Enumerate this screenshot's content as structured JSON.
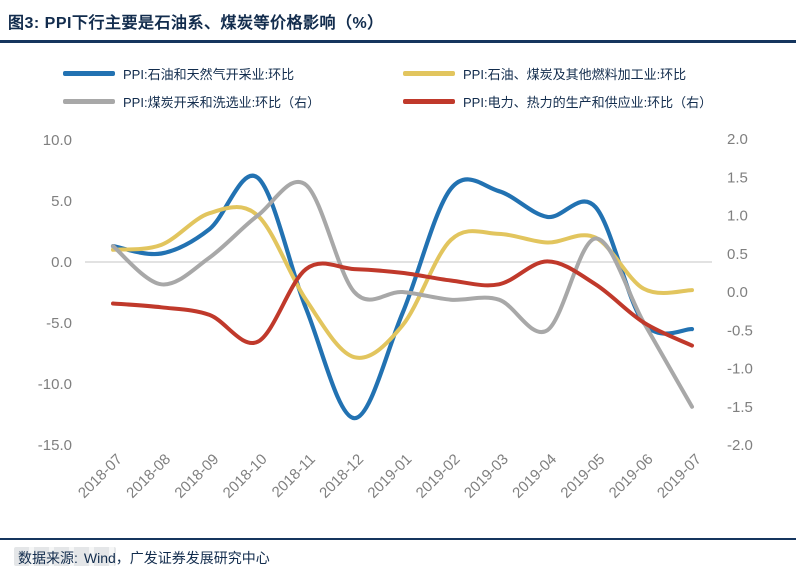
{
  "header": {
    "title": "图3:  PPI下行主要是石油系、煤炭等价格影响（%）"
  },
  "chart_data": {
    "type": "line",
    "title": "PPI下行主要是石油系、煤炭等价格影响（%）",
    "x": [
      "2018-07",
      "2018-08",
      "2018-09",
      "2018-10",
      "2018-11",
      "2018-12",
      "2019-01",
      "2019-02",
      "2019-03",
      "2019-04",
      "2019-05",
      "2019-06",
      "2019-07"
    ],
    "series": [
      {
        "name": "PPI:石油和天然气开采业:环比",
        "axis": "left",
        "color": "#2272B2",
        "stroke_width": 4.2,
        "values": [
          1.3,
          0.7,
          2.7,
          6.9,
          -3.8,
          -12.8,
          -4.2,
          6.0,
          5.8,
          3.7,
          4.5,
          -5.0,
          -5.5
        ]
      },
      {
        "name": "PPI:石油、煤炭及其他燃料加工业:环比",
        "axis": "left",
        "color": "#E2C55E",
        "stroke_width": 4,
        "values": [
          1.0,
          1.4,
          4.0,
          3.8,
          -3.1,
          -7.8,
          -5.2,
          1.8,
          2.3,
          1.6,
          2.0,
          -2.2,
          -2.3
        ]
      },
      {
        "name": "PPI:煤炭开采和洗选业:环比（右）",
        "axis": "right",
        "color": "#A8A8A8",
        "stroke_width": 4,
        "values": [
          0.6,
          0.1,
          0.45,
          1.0,
          1.4,
          0.0,
          0.0,
          -0.1,
          -0.1,
          -0.5,
          0.7,
          -0.4,
          -1.5
        ]
      },
      {
        "name": "PPI:电力、热力的生产和供应业:环比（右）",
        "axis": "right",
        "color": "#C0392B",
        "stroke_width": 4,
        "values": [
          -0.15,
          -0.2,
          -0.3,
          -0.65,
          0.3,
          0.3,
          0.25,
          0.15,
          0.1,
          0.4,
          0.1,
          -0.4,
          -0.7
        ]
      }
    ],
    "left_axis": {
      "ticks": [
        "10.0",
        "5.0",
        "0.0",
        "-5.0",
        "-10.0",
        "-15.0"
      ],
      "min": -15,
      "max": 10
    },
    "right_axis": {
      "ticks": [
        "2.0",
        "1.5",
        "1.0",
        "0.5",
        "0.0",
        "-0.5",
        "-1.0",
        "-1.5",
        "-2.0"
      ],
      "min": -2,
      "max": 2
    },
    "grid": "zero-line-only",
    "legend_position": "top",
    "line_style": "smooth",
    "tick_color": "#7f7f7f",
    "gridline_color": "#d9d9d9"
  },
  "footer": {
    "source_label": "数据来源:",
    "source_text": "Wind，广发证券发展研究中心"
  }
}
